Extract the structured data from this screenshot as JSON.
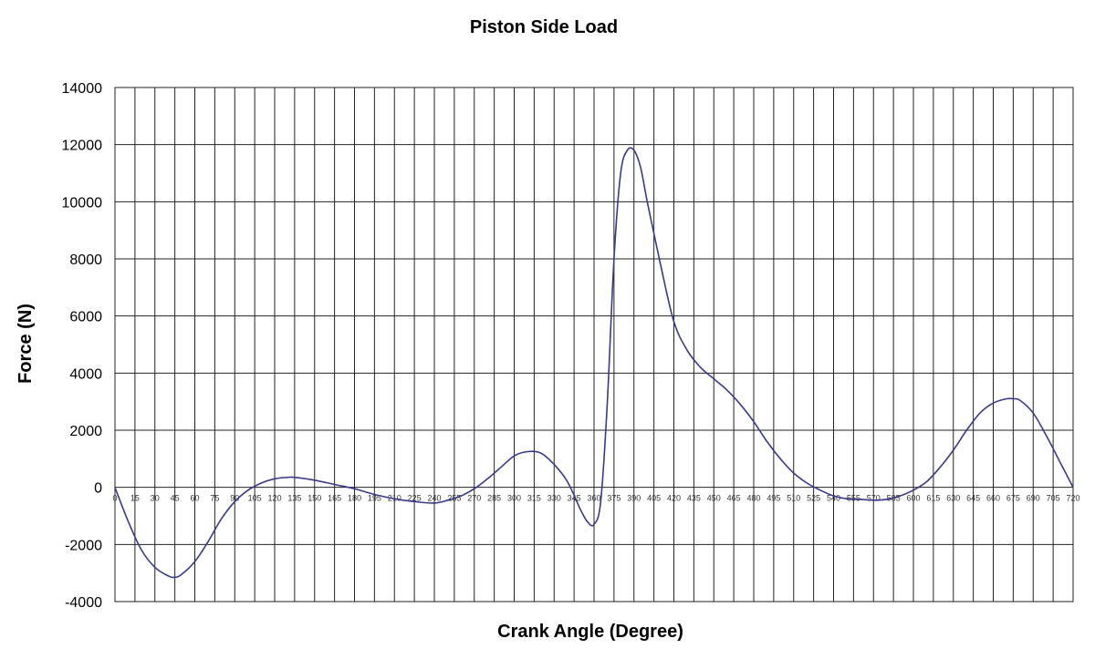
{
  "chart_data": {
    "type": "line",
    "title": "Piston Side Load",
    "xlabel": "Crank Angle (Degree)",
    "ylabel": "Force (N)",
    "xlim": [
      0,
      720
    ],
    "ylim": [
      -4000,
      14000
    ],
    "y_ticks": [
      "14000",
      "12000",
      "10000",
      "8000",
      "6000",
      "4000",
      "2000",
      "0",
      "-2000",
      "-4000"
    ],
    "x_ticks": [
      "0",
      "15",
      "30",
      "45",
      "60",
      "75",
      "90",
      "105",
      "120",
      "135",
      "150",
      "165",
      "180",
      "195",
      "210",
      "225",
      "240",
      "255",
      "270",
      "285",
      "300",
      "315",
      "330",
      "345",
      "360",
      "375",
      "390",
      "405",
      "420",
      "435",
      "450",
      "465",
      "480",
      "495",
      "510",
      "525",
      "540",
      "555",
      "570",
      "585",
      "600",
      "615",
      "630",
      "645",
      "660",
      "675",
      "690",
      "705",
      "720"
    ],
    "grid": true,
    "series": [
      {
        "color": "#3a3a8a",
        "x": [
          0,
          10,
          20,
          30,
          40,
          45,
          50,
          60,
          70,
          80,
          90,
          100,
          110,
          120,
          130,
          135,
          150,
          165,
          180,
          195,
          210,
          225,
          240,
          250,
          260,
          270,
          280,
          290,
          300,
          310,
          320,
          330,
          340,
          350,
          355,
          360,
          365,
          370,
          375,
          380,
          385,
          390,
          395,
          400,
          410,
          420,
          430,
          440,
          450,
          460,
          470,
          480,
          490,
          500,
          510,
          520,
          530,
          540,
          550,
          560,
          570,
          580,
          590,
          600,
          610,
          620,
          630,
          640,
          650,
          660,
          670,
          675,
          680,
          690,
          700,
          710,
          720
        ],
        "y": [
          0,
          -1200,
          -2200,
          -2800,
          -3100,
          -3150,
          -3050,
          -2600,
          -1900,
          -1100,
          -500,
          -100,
          150,
          300,
          350,
          350,
          250,
          100,
          -50,
          -250,
          -400,
          -500,
          -550,
          -450,
          -300,
          -50,
          300,
          700,
          1100,
          1250,
          1200,
          800,
          200,
          -800,
          -1200,
          -1300,
          -500,
          3000,
          8000,
          11000,
          11800,
          11800,
          11200,
          10000,
          7800,
          5800,
          4800,
          4200,
          3800,
          3400,
          2900,
          2300,
          1600,
          1000,
          500,
          150,
          -100,
          -300,
          -400,
          -420,
          -450,
          -420,
          -300,
          -100,
          200,
          700,
          1300,
          2000,
          2600,
          2950,
          3100,
          3100,
          3050,
          2600,
          1800,
          900,
          0
        ]
      }
    ]
  }
}
